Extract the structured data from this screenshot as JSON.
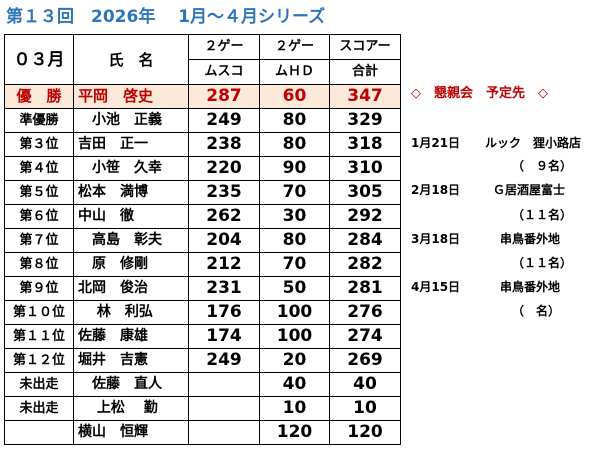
{
  "title": "第１３回　2026年　 1月～４月シリーズ",
  "table": {
    "header": {
      "group": "０３月",
      "name": "氏　名",
      "col1_line1": "２ゲー",
      "col1_line2": "ムスコ",
      "col2_line1": "２ゲー",
      "col2_line2": "ムＨＤ",
      "col3_line1": "スコアー",
      "col3_line2": "合計"
    },
    "rows": [
      {
        "rank": "優　勝",
        "name": "平岡　啓史",
        "score": "287",
        "hd": "60",
        "total": "347"
      },
      {
        "rank": "準優勝",
        "name": "　小池　正義",
        "score": "249",
        "hd": "80",
        "total": "329"
      },
      {
        "rank": "第３位",
        "name": "吉田　正一",
        "score": "238",
        "hd": "80",
        "total": "318"
      },
      {
        "rank": "第４位",
        "name": "　小笹　久幸",
        "score": "220",
        "hd": "90",
        "total": "310"
      },
      {
        "rank": "第５位",
        "name": "松本　満博",
        "score": "235",
        "hd": "70",
        "total": "305"
      },
      {
        "rank": "第６位",
        "name": "中山　徹",
        "score": "262",
        "hd": "30",
        "total": "292"
      },
      {
        "rank": "第７位",
        "name": "　高島　彰夫",
        "score": "204",
        "hd": "80",
        "total": "284"
      },
      {
        "rank": "第８位",
        "name": "　原　修剛",
        "score": "212",
        "hd": "70",
        "total": "282"
      },
      {
        "rank": "第９位",
        "name": "北岡　俊治",
        "score": "231",
        "hd": "50",
        "total": "281"
      },
      {
        "rank": "第１０位",
        "name": "　 林　利弘",
        "score": "176",
        "hd": "100",
        "total": "276"
      },
      {
        "rank": "第１１位",
        "name": "佐藤　康雄",
        "score": "174",
        "hd": "100",
        "total": "274"
      },
      {
        "rank": "第１２位",
        "name": "堀井　吉憲",
        "score": "249",
        "hd": "20",
        "total": "269"
      },
      {
        "rank": "未出走",
        "name": "　佐藤　直人",
        "score": "",
        "hd": "40",
        "total": "40"
      },
      {
        "rank": "未出走",
        "name": "　 上松　 勤",
        "score": "",
        "hd": "10",
        "total": "10"
      },
      {
        "rank": "",
        "name": "横山　恒輝",
        "score": "",
        "hd": "120",
        "total": "120"
      }
    ]
  },
  "notes": {
    "heading": "◇　懇親会　予定先　◇",
    "items": [
      {
        "date": "1月21日",
        "place": "ルック　狸小路店",
        "count": "（　９名）"
      },
      {
        "date": "2月18日",
        "place": "Ｇ居酒屋富士",
        "count": "（１１名）"
      },
      {
        "date": "3月18日",
        "place": "串鳥番外地",
        "count": "（１１名）"
      },
      {
        "date": "4月15日",
        "place": "串鳥番外地",
        "count": "（　名）"
      }
    ]
  },
  "colors": {
    "title": "#2e75b6",
    "winner_text": "#c00000",
    "winner_bg": "#fde9d9"
  }
}
